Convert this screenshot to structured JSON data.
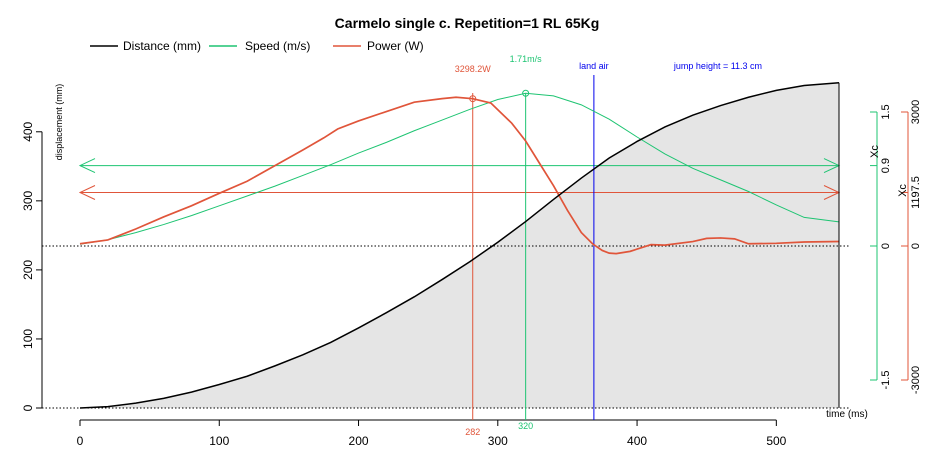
{
  "chart_data": {
    "type": "line",
    "title": "Carmelo single c. Repetition=1 RL 65Kg",
    "xlabel": "time (ms)",
    "ylabel": "displacement (mm)",
    "xlim": [
      0,
      545
    ],
    "ylim": [
      0,
      475
    ],
    "x_ticks": [
      0,
      100,
      200,
      300,
      400,
      500
    ],
    "y_ticks": [
      0,
      100,
      200,
      300,
      400
    ],
    "grid": false,
    "legend_position": "top",
    "legend": [
      {
        "label": "Distance (mm)",
        "color": "#000000"
      },
      {
        "label": "Speed (m/s)",
        "color": "#1ec472"
      },
      {
        "label": "Power (W)",
        "color": "#e0553a"
      }
    ],
    "speed_axis": {
      "ticks": [
        -1.5,
        0,
        0.9,
        1.5
      ],
      "label": "Xc",
      "color": "#1ec472"
    },
    "power_axis": {
      "ticks": [
        -3000,
        0,
        1197.5,
        3000
      ],
      "label": "Xc",
      "color": "#e0553a"
    },
    "series": [
      {
        "name": "Distance (mm)",
        "color": "#000000",
        "x": [
          0,
          20,
          40,
          60,
          80,
          100,
          120,
          140,
          160,
          180,
          200,
          220,
          240,
          260,
          280,
          300,
          320,
          340,
          360,
          380,
          400,
          420,
          440,
          460,
          480,
          500,
          520,
          545
        ],
        "y": [
          0,
          2,
          7,
          14,
          23,
          34,
          46,
          61,
          77,
          95,
          116,
          138,
          161,
          186,
          212,
          240,
          270,
          302,
          333,
          362,
          386,
          407,
          424,
          438,
          450,
          460,
          467,
          471
        ]
      },
      {
        "name": "Speed (m/s)",
        "color": "#1ec472",
        "axis": "speed",
        "x": [
          0,
          20,
          40,
          60,
          80,
          100,
          120,
          140,
          160,
          180,
          200,
          220,
          240,
          260,
          280,
          300,
          320,
          340,
          360,
          380,
          400,
          420,
          440,
          460,
          480,
          500,
          520,
          545
        ],
        "y": [
          0.02,
          0.07,
          0.15,
          0.24,
          0.34,
          0.45,
          0.56,
          0.67,
          0.79,
          0.91,
          1.04,
          1.16,
          1.29,
          1.41,
          1.53,
          1.64,
          1.71,
          1.68,
          1.58,
          1.42,
          1.22,
          1.03,
          0.87,
          0.74,
          0.61,
          0.46,
          0.32,
          0.27
        ]
      },
      {
        "name": "Power (W)",
        "color": "#e0553a",
        "axis": "power",
        "x": [
          0,
          20,
          40,
          60,
          80,
          100,
          120,
          140,
          160,
          175,
          185,
          200,
          220,
          240,
          260,
          270,
          282,
          295,
          310,
          320,
          330,
          340,
          350,
          360,
          368,
          375,
          380,
          385,
          395,
          410,
          420,
          440,
          450,
          460,
          470,
          480,
          500,
          520,
          545
        ],
        "y": [
          50,
          135,
          380,
          650,
          900,
          1180,
          1450,
          1800,
          2150,
          2420,
          2620,
          2800,
          3010,
          3220,
          3300,
          3330,
          3298,
          3200,
          2750,
          2350,
          1850,
          1350,
          800,
          300,
          50,
          -100,
          -160,
          -170,
          -120,
          30,
          20,
          100,
          170,
          180,
          160,
          50,
          60,
          90,
          100
        ]
      }
    ],
    "vlines": [
      {
        "x": 282,
        "label": "282",
        "annotation": "3298.2W",
        "color": "#e0553a"
      },
      {
        "x": 320,
        "label": "320",
        "annotation": "1.71m/s",
        "color": "#1ec472"
      },
      {
        "x": 369,
        "annotation": "land  air",
        "color": "#0000ee"
      }
    ],
    "annotations": [
      {
        "text": "jump height = 11.3 cm",
        "color": "#0000ee"
      }
    ],
    "arrows": [
      {
        "axis": "speed",
        "y": 0.9,
        "color": "#1ec472"
      },
      {
        "axis": "power",
        "y": 1197.5,
        "color": "#e0553a"
      }
    ]
  }
}
